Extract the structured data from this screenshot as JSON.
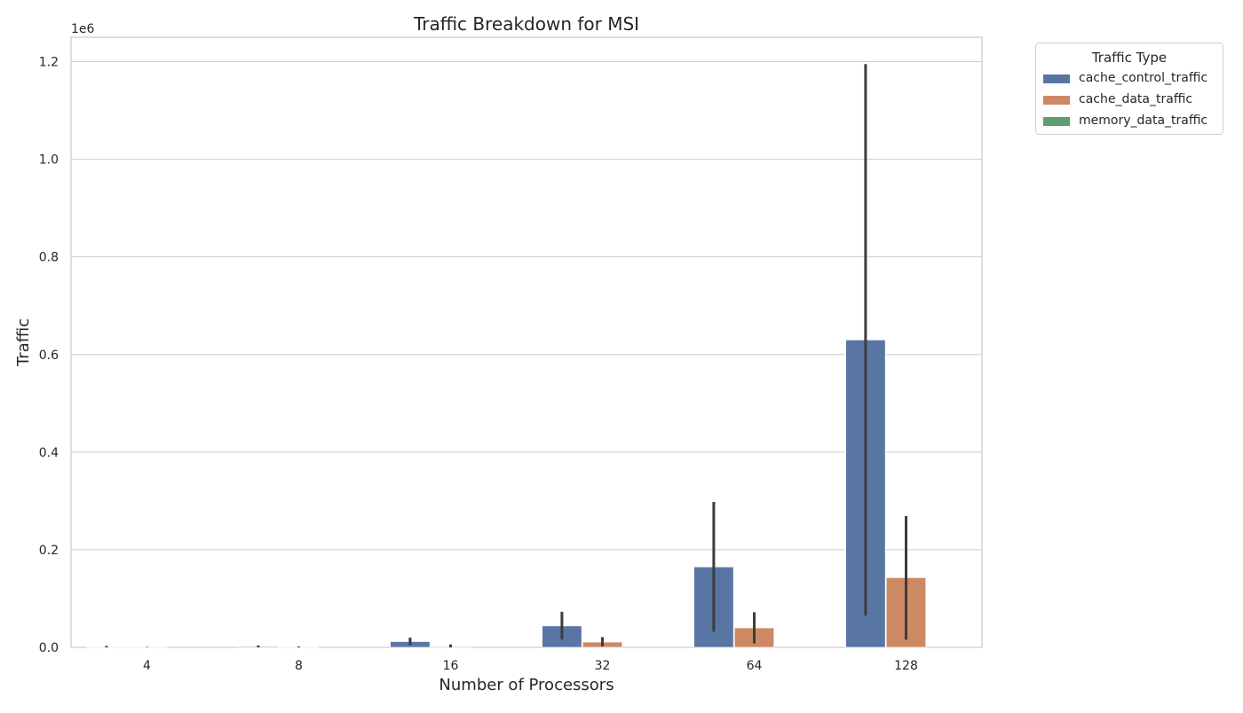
{
  "chart_data": {
    "type": "bar",
    "title": "Traffic Breakdown for MSI",
    "xlabel": "Number of Processors",
    "ylabel": "Traffic",
    "y_scale_label": "1e6",
    "ylim": [
      0,
      1.25
    ],
    "yticks": [
      "0.0",
      "0.2",
      "0.4",
      "0.6",
      "0.8",
      "1.0",
      "1.2"
    ],
    "categories": [
      "4",
      "8",
      "16",
      "32",
      "64",
      "128"
    ],
    "grid": true,
    "legend_position": "outside top-right",
    "legend_title": "Traffic Type",
    "series": [
      {
        "name": "cache_control_traffic",
        "color": "#5875a4",
        "values": [
          0.001,
          0.002,
          0.012,
          0.044,
          0.165,
          0.63
        ],
        "err_low": [
          0.0,
          0.0,
          0.005,
          0.016,
          0.032,
          0.065
        ],
        "err_high": [
          0.003,
          0.004,
          0.02,
          0.073,
          0.298,
          1.195
        ]
      },
      {
        "name": "cache_data_traffic",
        "color": "#cc8963",
        "values": [
          0.0002,
          0.0005,
          0.002,
          0.011,
          0.04,
          0.143
        ],
        "err_low": [
          0.0,
          0.0,
          0.0,
          0.002,
          0.008,
          0.016
        ],
        "err_high": [
          0.0008,
          0.002,
          0.006,
          0.021,
          0.072,
          0.269
        ]
      },
      {
        "name": "memory_data_traffic",
        "color": "#5f9e6e",
        "values": [
          0,
          0,
          0,
          0,
          0,
          0
        ],
        "err_low": [
          0,
          0,
          0,
          0,
          0,
          0
        ],
        "err_high": [
          0,
          0,
          0,
          0,
          0,
          0
        ]
      }
    ]
  }
}
